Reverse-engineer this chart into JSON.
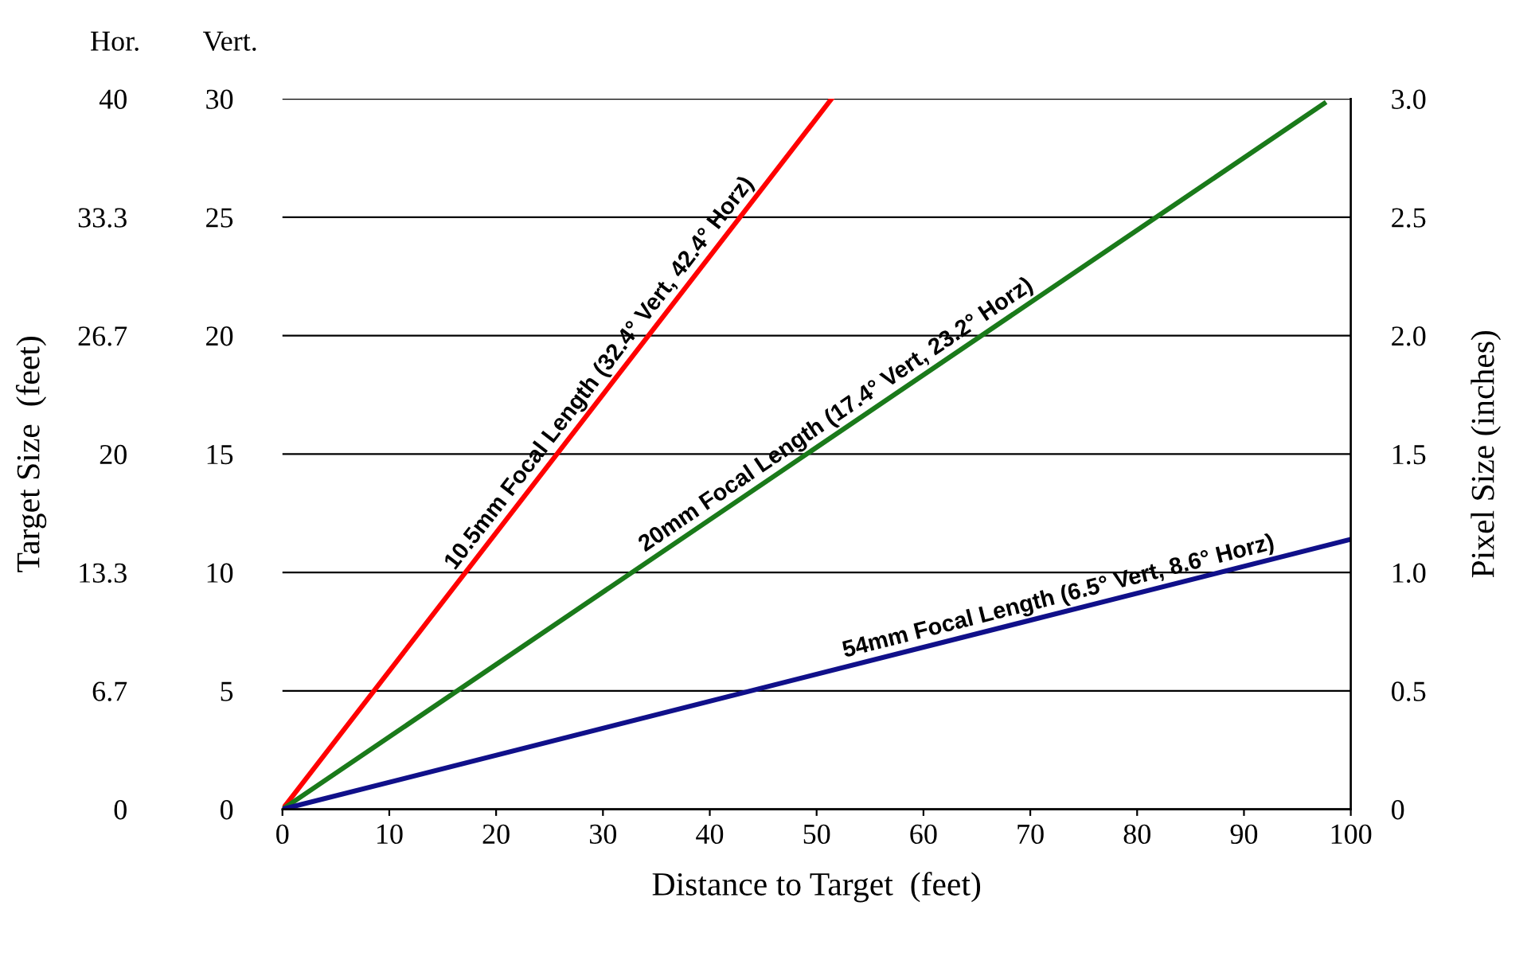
{
  "chart_data": {
    "type": "line",
    "xlabel": "Distance to Target  (feet)",
    "ylabel": "Target Size  (feet)",
    "y2label": "Pixel Size (inches)",
    "annotations": [
      "Hor.",
      "Vert."
    ],
    "series": [
      {
        "name": "10.5mm Focal Length (32.4° Vert, 42.4° Horz)",
        "color": "#ff0000",
        "x": [
          0,
          51.4
        ],
        "values": [
          0,
          30
        ]
      },
      {
        "name": "20mm Focal Length (17.4° Vert, 23.2° Horz)",
        "color": "#1a7a1a",
        "x": [
          0,
          97.5
        ],
        "values": [
          0,
          29.8
        ]
      },
      {
        "name": "54mm Focal Length (6.5° Vert, 8.6° Horz)",
        "color": "#10108a",
        "x": [
          0,
          100
        ],
        "values": [
          0,
          11.4
        ]
      }
    ],
    "xlim": [
      0,
      100
    ],
    "xticks": [
      0,
      10,
      20,
      30,
      40,
      50,
      60,
      70,
      80,
      90,
      100
    ],
    "ylim": [
      0,
      30
    ],
    "yticks": [
      0,
      5,
      10,
      15,
      20,
      25,
      30
    ],
    "y2lim": [
      0,
      3
    ],
    "y2ticks": [
      0,
      {
        "value": 0.5,
        "label": "0.5"
      },
      {
        "value": 1,
        "label": "1.0"
      },
      {
        "value": 1.5,
        "label": "1.5"
      },
      {
        "value": 2,
        "label": "2.0"
      },
      {
        "value": 2.5,
        "label": "2.5"
      },
      {
        "value": 3,
        "label": "3.0"
      }
    ],
    "y3lim": [
      0,
      40
    ],
    "y3ticks": [
      0,
      {
        "value": 6.667,
        "label": "6.7"
      },
      {
        "value": 13.333,
        "label": "13.3"
      },
      20,
      {
        "value": 26.667,
        "label": "26.7"
      },
      {
        "value": 33.333,
        "label": "33.3"
      },
      40
    ],
    "grid": "y",
    "legend": false,
    "marker": "none",
    "line_style": "solid"
  }
}
